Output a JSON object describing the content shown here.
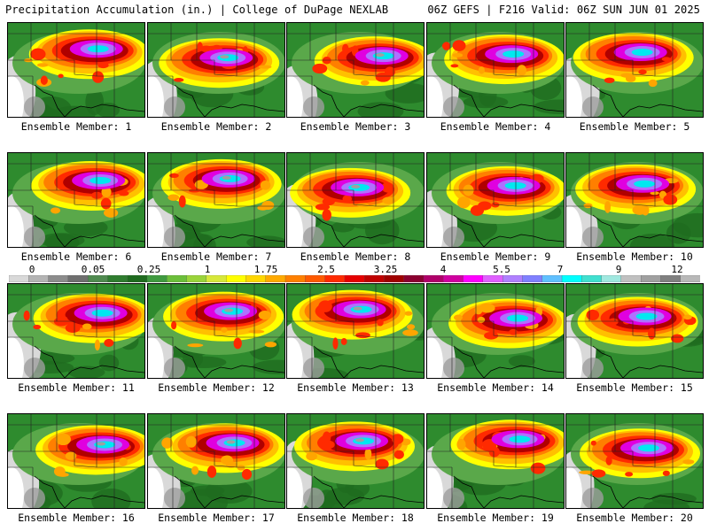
{
  "header": {
    "title": "Precipitation Accumulation (in.) | College of DuPage NEXLAB",
    "run_info": "06Z GEFS | F216 Valid: 06Z SUN JUN 01 2025"
  },
  "colorbar": {
    "tick_labels": [
      "0",
      "0.05",
      "0.25",
      "1",
      "1.75",
      "2.5",
      "3.25",
      "4",
      "5.5",
      "7",
      "9",
      "12"
    ],
    "colors": [
      "#d9d9d9",
      "#b4b4b4",
      "#8c8c8c",
      "#6f6f6f",
      "#4f8a4f",
      "#2f7d2f",
      "#1f6b1f",
      "#3f9a3f",
      "#6bbf3a",
      "#9ad43a",
      "#d7e83a",
      "#ffff00",
      "#ffd700",
      "#ffaa00",
      "#ff8000",
      "#ff5a00",
      "#ff2a00",
      "#e60000",
      "#c00000",
      "#a00000",
      "#8b0030",
      "#b0006a",
      "#d000a0",
      "#ff00ff",
      "#e060ff",
      "#b080ff",
      "#8080ff",
      "#60c0ff",
      "#00ffff",
      "#40e0d0",
      "#a0e8e0",
      "#c0c0c0",
      "#a0a0a0",
      "#808080",
      "#b8b8b8"
    ]
  },
  "panels": [
    {
      "label": "Ensemble Member: 1"
    },
    {
      "label": "Ensemble Member: 2"
    },
    {
      "label": "Ensemble Member: 3"
    },
    {
      "label": "Ensemble Member: 4"
    },
    {
      "label": "Ensemble Member: 5"
    },
    {
      "label": "Ensemble Member: 6"
    },
    {
      "label": "Ensemble Member: 7"
    },
    {
      "label": "Ensemble Member: 8"
    },
    {
      "label": "Ensemble Member: 9"
    },
    {
      "label": "Ensemble Member: 10"
    },
    {
      "label": "Ensemble Member: 11"
    },
    {
      "label": "Ensemble Member: 12"
    },
    {
      "label": "Ensemble Member: 13"
    },
    {
      "label": "Ensemble Member: 14"
    },
    {
      "label": "Ensemble Member: 15"
    },
    {
      "label": "Ensemble Member: 16"
    },
    {
      "label": "Ensemble Member: 17"
    },
    {
      "label": "Ensemble Member: 18"
    },
    {
      "label": "Ensemble Member: 19"
    },
    {
      "label": "Ensemble Member: 20"
    }
  ],
  "legend_colors": {
    "background_green": "#2e7d2e",
    "light_green": "#5aa84a",
    "yellow": "#ffff00",
    "orange": "#ffa500",
    "red": "#ff2a00",
    "dark_red": "#b00000",
    "magenta": "#e000e0",
    "purple": "#b070ff",
    "cyan": "#00e8f0",
    "gray": "#a0a0a0",
    "white": "#ffffff"
  }
}
